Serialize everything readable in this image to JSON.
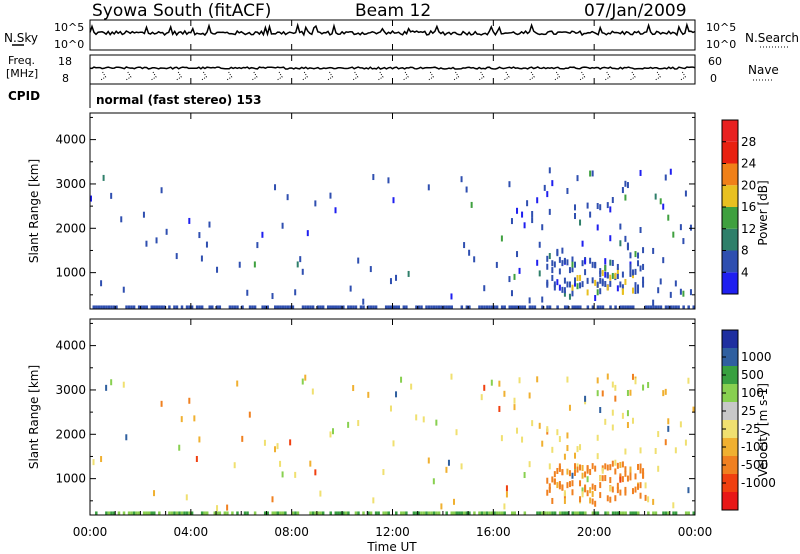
{
  "header": {
    "station": "Syowa South (fitACF)",
    "beam": "Beam 12",
    "date": "07/Jan/2009"
  },
  "strip_labels": {
    "nsky": "N.Sky",
    "nsearch": "N.Search",
    "freq_line1": "Freq.",
    "freq_line2": "[MHz]",
    "nave": "Nave",
    "cpid": "CPID",
    "cpid_text": "normal (fast stereo) 153",
    "noise_top": "10^5",
    "noise_bottom": "10^0",
    "freq_top": "18",
    "freq_bottom": "8",
    "nave_top": "60",
    "nave_bottom": "0"
  },
  "x_axis": {
    "label": "Time UT",
    "ticks": [
      "00:00",
      "04:00",
      "08:00",
      "12:00",
      "16:00",
      "20:00",
      "00:00"
    ]
  },
  "chart_data": [
    {
      "type": "heatmap",
      "name": "power",
      "ylabel": "Slant Range [km]",
      "ylim": [
        180,
        4600
      ],
      "yticks": [
        1000,
        2000,
        3000,
        4000
      ],
      "xlim": [
        0,
        24
      ],
      "colorbar": {
        "label": "Power [dB]",
        "ticks": [
          "4",
          "8",
          "12",
          "16",
          "20",
          "24",
          "28"
        ],
        "colors": [
          "#1f1ff0",
          "#2f4fb0",
          "#2f7f6a",
          "#3fa03f",
          "#e8c020",
          "#f08018",
          "#e82010",
          "#e82020"
        ]
      }
    },
    {
      "type": "heatmap",
      "name": "velocity",
      "ylabel": "Slant Range [km]",
      "ylim": [
        180,
        4600
      ],
      "yticks": [
        1000,
        2000,
        3000,
        4000
      ],
      "xlim": [
        0,
        24
      ],
      "colorbar": {
        "label": "Velocity [m s-1]",
        "ticks": [
          "-1000",
          "-500",
          "-100",
          "-25",
          "25",
          "100",
          "500",
          "1000"
        ],
        "colors": [
          "#e81818",
          "#f04010",
          "#f08020",
          "#f0b030",
          "#f0e070",
          "#c8c8c8",
          "#88d050",
          "#38a040",
          "#2f5f9f",
          "#1f2fa0"
        ]
      }
    }
  ]
}
